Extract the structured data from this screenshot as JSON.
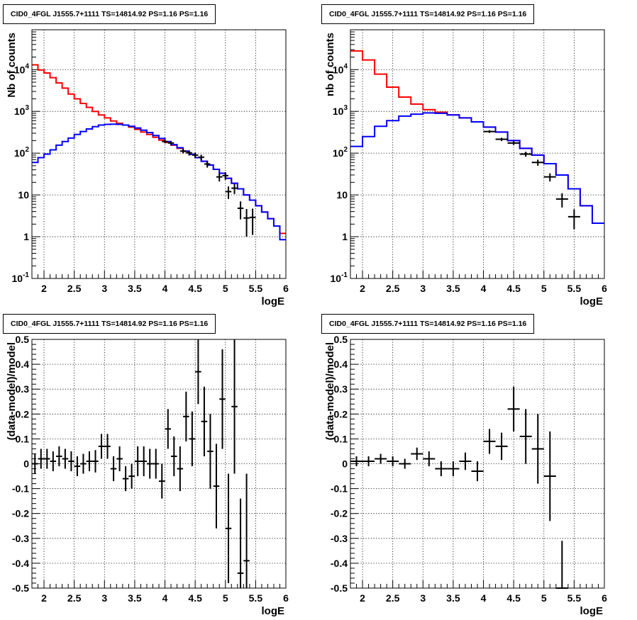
{
  "chart_data": [
    {
      "type": "line",
      "title": "CID0_4FGL J1555.7+1111 TS=14814.92 PS=1.16 PS=1.16",
      "xlabel": "logE",
      "ylabel": "Nb of counts",
      "xlim": [
        1.8,
        6.0
      ],
      "ylim": [
        0.1,
        90000
      ],
      "yscale": "log",
      "grid": true,
      "xticks": [
        "2",
        "2.5",
        "3",
        "3.5",
        "4",
        "4.5",
        "5",
        "5.5",
        "6"
      ],
      "yticks": [
        "10^-1",
        "1",
        "10",
        "10^2",
        "10^3",
        "10^4"
      ],
      "bin_edges": [
        1.8,
        1.9,
        2.0,
        2.1,
        2.2,
        2.3,
        2.4,
        2.5,
        2.6,
        2.7,
        2.8,
        2.9,
        3.0,
        3.1,
        3.2,
        3.3,
        3.4,
        3.5,
        3.6,
        3.7,
        3.8,
        3.9,
        4.0,
        4.1,
        4.2,
        4.3,
        4.4,
        4.5,
        4.6,
        4.7,
        4.8,
        4.9,
        5.0,
        5.1,
        5.2,
        5.3,
        5.4,
        5.5,
        5.6,
        5.7,
        5.8,
        5.9,
        6.0
      ],
      "series": [
        {
          "color": "#ff0000",
          "style": "step",
          "values": [
            13000,
            9800,
            8300,
            6400,
            4800,
            3600,
            2600,
            2000,
            1550,
            1250,
            1000,
            820,
            700,
            590,
            520,
            470,
            420,
            370,
            320,
            280,
            240,
            205,
            180,
            155,
            130,
            110,
            93,
            78,
            64,
            52,
            41,
            33,
            25,
            19,
            14,
            10,
            7.5,
            5.5,
            3.9,
            2.7,
            1.8,
            1.2
          ]
        },
        {
          "color": "#0000ff",
          "style": "step",
          "values": [
            60,
            78,
            95,
            120,
            155,
            190,
            230,
            280,
            330,
            380,
            430,
            470,
            490,
            495,
            490,
            470,
            440,
            400,
            355,
            310,
            265,
            225,
            190,
            160,
            135,
            112,
            94,
            78,
            64,
            52,
            41,
            33,
            25,
            19,
            14,
            10,
            7.5,
            5.5,
            3.9,
            2.7,
            1.8,
            0.85
          ]
        }
      ],
      "points": {
        "x": [
          4.0,
          4.1,
          4.3,
          4.4,
          4.5,
          4.6,
          4.7,
          4.9,
          5.0,
          5.05,
          5.15,
          5.25,
          5.35,
          5.45
        ],
        "y": [
          190,
          175,
          112,
          102,
          90,
          80,
          55,
          27,
          29,
          12,
          14.5,
          4.8,
          2.8,
          2.9
        ],
        "yerr_lo": [
          18,
          18,
          14,
          14,
          13,
          12,
          10,
          6,
          6,
          4,
          4,
          2.2,
          1.8,
          1.8
        ],
        "yerr_hi": [
          18,
          18,
          14,
          14,
          13,
          12,
          10,
          6,
          6,
          4,
          4,
          2.2,
          1.8,
          1.8
        ],
        "xerr": 0.05
      }
    },
    {
      "type": "line",
      "title": "CID0_4FGL J1555.7+1111 TS=14814.92 PS=1.16 PS=1.16",
      "xlabel": "logE",
      "ylabel": "nb of counts",
      "xlim": [
        1.8,
        6.0
      ],
      "ylim": [
        0.1,
        90000
      ],
      "yscale": "log",
      "grid": true,
      "xticks": [
        "2",
        "2.5",
        "3",
        "3.5",
        "4",
        "4.5",
        "5",
        "5.5",
        "6"
      ],
      "yticks": [
        "10^-1",
        "1",
        "10",
        "10^2",
        "10^3",
        "10^4"
      ],
      "bin_edges": [
        1.8,
        2.0,
        2.2,
        2.4,
        2.6,
        2.8,
        3.0,
        3.2,
        3.4,
        3.6,
        3.8,
        4.0,
        4.2,
        4.4,
        4.6,
        4.8,
        5.0,
        5.2,
        5.4,
        5.6,
        5.8,
        6.0
      ],
      "series": [
        {
          "color": "#ff0000",
          "style": "step",
          "values": [
            28000,
            17000,
            7800,
            3800,
            2200,
            1500,
            1100,
            950,
            830,
            700,
            560,
            420,
            320,
            200,
            130,
            90,
            56,
            30,
            14,
            5.5,
            2.1
          ]
        },
        {
          "color": "#0000ff",
          "style": "step",
          "values": [
            145,
            250,
            440,
            600,
            770,
            860,
            920,
            900,
            820,
            700,
            560,
            420,
            320,
            200,
            130,
            90,
            56,
            30,
            14,
            5.5,
            2.1
          ]
        }
      ],
      "points": {
        "x": [
          4.1,
          4.3,
          4.5,
          4.7,
          4.9,
          5.1,
          5.3,
          5.5
        ],
        "y": [
          330,
          215,
          175,
          95,
          60,
          27,
          8,
          3
        ],
        "yerr_lo": [
          25,
          20,
          18,
          13,
          10,
          6,
          3,
          1.5
        ],
        "yerr_hi": [
          25,
          20,
          18,
          13,
          10,
          6,
          3,
          1.5
        ],
        "xerr": 0.1
      }
    },
    {
      "type": "scatter",
      "title": "CID0_4FGL J1555.7+1111 TS=14814.92 PS=1.16 PS=1.16",
      "xlabel": "logE",
      "ylabel": "(data-model)/model",
      "xlim": [
        1.8,
        6.0
      ],
      "ylim": [
        -0.5,
        0.5
      ],
      "yscale": "linear",
      "grid": true,
      "xticks": [
        "2",
        "2.5",
        "3",
        "3.5",
        "4",
        "4.5",
        "5",
        "5.5",
        "6"
      ],
      "yticks": [
        "-0.5",
        "-0.4",
        "-0.3",
        "-0.2",
        "-0.1",
        "0",
        "0.1",
        "0.2",
        "0.3",
        "0.4",
        "0.5"
      ],
      "points": {
        "x": [
          1.85,
          1.95,
          2.05,
          2.15,
          2.25,
          2.35,
          2.45,
          2.55,
          2.65,
          2.75,
          2.85,
          2.95,
          3.05,
          3.15,
          3.25,
          3.35,
          3.45,
          3.55,
          3.65,
          3.75,
          3.85,
          3.95,
          4.05,
          4.15,
          4.25,
          4.35,
          4.45,
          4.55,
          4.65,
          4.75,
          4.85,
          4.95,
          5.05,
          5.15,
          5.25,
          5.35
        ],
        "y": [
          0.0,
          0.02,
          0.02,
          0.01,
          0.03,
          0.02,
          0.01,
          -0.01,
          0.0,
          0.01,
          0.01,
          0.07,
          0.07,
          -0.02,
          0.02,
          -0.06,
          -0.05,
          0.01,
          0.01,
          0.0,
          0.0,
          -0.07,
          0.14,
          0.03,
          -0.02,
          0.19,
          0.1,
          0.37,
          0.17,
          0.05,
          -0.09,
          0.26,
          -0.26,
          0.23,
          -0.44,
          -0.39
        ],
        "yerr": [
          0.04,
          0.04,
          0.04,
          0.04,
          0.04,
          0.04,
          0.04,
          0.04,
          0.04,
          0.04,
          0.045,
          0.05,
          0.05,
          0.05,
          0.05,
          0.05,
          0.05,
          0.06,
          0.06,
          0.06,
          0.06,
          0.07,
          0.08,
          0.08,
          0.09,
          0.1,
          0.11,
          0.13,
          0.14,
          0.15,
          0.17,
          0.2,
          0.22,
          0.27,
          0.3,
          0.35
        ],
        "xerr": 0.05
      }
    },
    {
      "type": "scatter",
      "title": "CID0_4FGL J1555.7+1111 TS=14814.92 PS=1.16 PS=1.16",
      "xlabel": "logE",
      "ylabel": "(data-model)/model",
      "xlim": [
        1.8,
        6.0
      ],
      "ylim": [
        -0.5,
        0.5
      ],
      "yscale": "linear",
      "grid": true,
      "xticks": [
        "2",
        "2.5",
        "3",
        "3.5",
        "4",
        "4.5",
        "5",
        "5.5",
        "6"
      ],
      "yticks": [
        "-0.5",
        "-0.4",
        "-0.3",
        "-0.2",
        "-0.1",
        "0",
        "0.1",
        "0.2",
        "0.3",
        "0.4",
        "0.5"
      ],
      "points": {
        "x": [
          1.9,
          2.1,
          2.3,
          2.5,
          2.7,
          2.9,
          3.1,
          3.3,
          3.5,
          3.7,
          3.9,
          4.1,
          4.3,
          4.5,
          4.7,
          4.9,
          5.1,
          5.3
        ],
        "y": [
          0.01,
          0.01,
          0.02,
          0.01,
          0.0,
          0.04,
          0.02,
          -0.02,
          -0.02,
          0.01,
          -0.03,
          0.09,
          0.07,
          0.22,
          0.11,
          0.06,
          -0.05,
          -0.5
        ],
        "yerr": [
          0.02,
          0.02,
          0.02,
          0.02,
          0.02,
          0.025,
          0.03,
          0.03,
          0.03,
          0.035,
          0.04,
          0.05,
          0.055,
          0.09,
          0.11,
          0.14,
          0.18,
          0.19
        ],
        "xerr": 0.1
      }
    }
  ]
}
